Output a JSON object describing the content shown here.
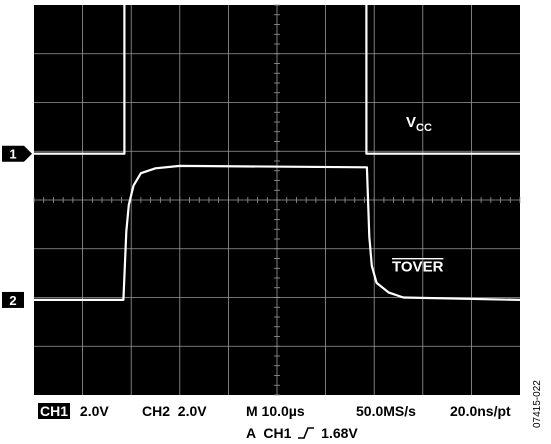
{
  "chart_data": {
    "type": "line",
    "title": "",
    "xlabel": "",
    "ylabel": "",
    "grid": true,
    "x_divisions": 10,
    "y_divisions": 8,
    "time_per_div_us": 10.0,
    "series": [
      {
        "name": "VCC",
        "name_base": "V",
        "name_sub": "CC",
        "channel": 1,
        "marker_label": "1",
        "volts_per_div": 2.0,
        "x_div": [
          0,
          1.86,
          1.86,
          6.84,
          6.84,
          10
        ],
        "y_div": [
          0,
          0,
          3.4,
          3.4,
          0,
          0
        ]
      },
      {
        "name": "TOVER",
        "overline": true,
        "channel": 2,
        "marker_label": "2",
        "volts_per_div": 2.0,
        "x_div": [
          0,
          1.84,
          1.9,
          1.95,
          2.05,
          2.2,
          2.5,
          3.0,
          6.85,
          6.9,
          6.95,
          7.05,
          7.3,
          7.6,
          10
        ],
        "y_div": [
          0,
          0,
          1.4,
          1.95,
          2.35,
          2.6,
          2.7,
          2.75,
          2.72,
          1.3,
          0.7,
          0.35,
          0.15,
          0.05,
          0
        ]
      }
    ],
    "channel1_ref_div": 4.95,
    "channel2_ref_div": 1.95
  },
  "footer": {
    "ch1_badge": "CH1",
    "ch1_scale": "2.0V",
    "ch2": "CH2  2.0V",
    "timebase": "M 10.0µs",
    "sample_rate": "50.0MS/s",
    "resolution": "20.0ns/pt",
    "trigger_prefix": "A  CH1",
    "trigger_level": "1.68V"
  },
  "figure_id": "07415-022",
  "colors": {
    "screen": "#000000",
    "grid": "#9a9a9a",
    "trace": "#ffffff",
    "text": "#000000"
  }
}
